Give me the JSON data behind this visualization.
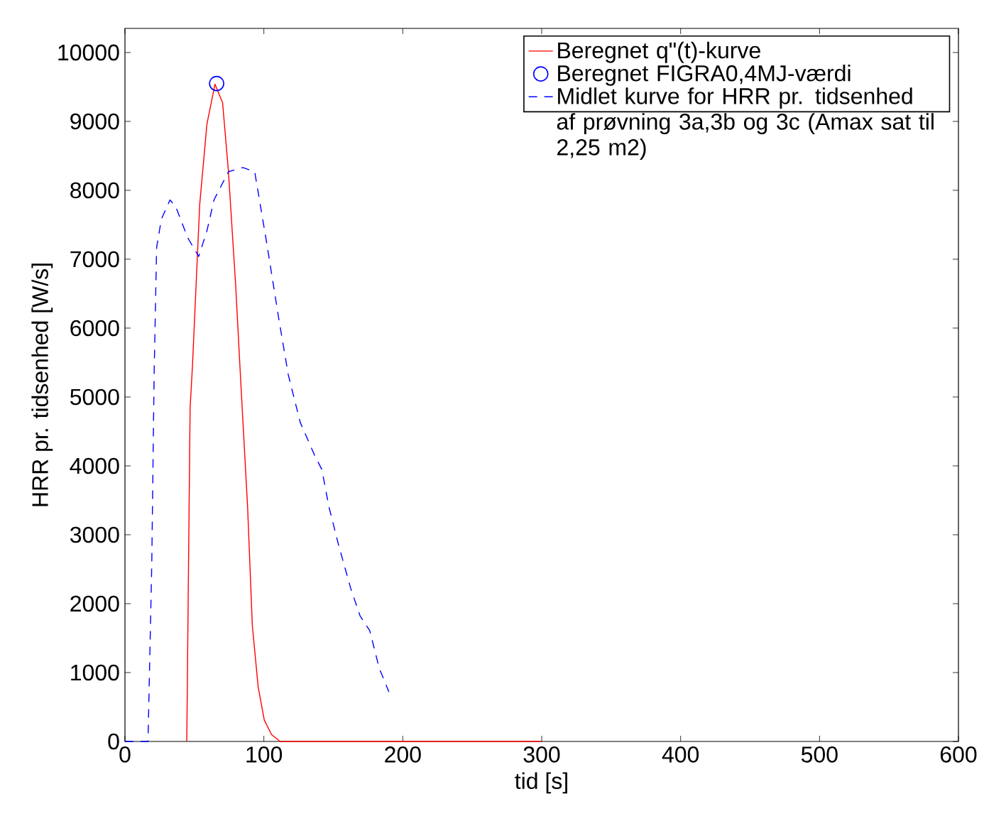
{
  "chart_data": {
    "type": "line",
    "xlabel": "tid [s]",
    "ylabel": "HRR pr. tidsenhed [W/s]",
    "xlim": [
      0,
      600
    ],
    "xticks": [
      0,
      100,
      200,
      300,
      400,
      500,
      600
    ],
    "ylim": [
      0,
      10350
    ],
    "yticks": [
      0,
      1000,
      2000,
      3000,
      4000,
      5000,
      6000,
      7000,
      8000,
      9000,
      10000
    ],
    "grid": false,
    "legend": "top right",
    "series": [
      {
        "name": "Beregnet q\"(t)-kurve",
        "color": "#ff0000",
        "line_style": "solid",
        "marker": "none",
        "x": [
          44.5,
          46.9,
          48.6,
          53.8,
          59,
          64.8,
          70.3,
          74.5,
          79.7,
          83.1,
          88.3,
          91.7,
          95.9,
          100.3,
          105.5,
          111.7,
          300
        ],
        "values": [
          0,
          4840,
          5450,
          7790,
          8960,
          9540,
          9270,
          8270,
          6620,
          5320,
          3400,
          1680,
          790,
          310,
          100,
          0,
          0
        ]
      },
      {
        "name": "Beregnet FIGRA0,4MJ-værdi",
        "type": "scatter",
        "color": "#0000ff",
        "marker": "circle",
        "x": [
          66
        ],
        "values": [
          9550
        ]
      },
      {
        "name": "Midlet kurve for HRR pr. tidsenhed af prøvning 3a,3b og 3c (Amax sat til 2,25 m2)",
        "color": "#0000ff",
        "line_style": "dashed",
        "marker": "none",
        "x": [
          0,
          16.6,
          19.3,
          21,
          22.8,
          26.2,
          32.4,
          36.6,
          45.2,
          53.1,
          59,
          64.1,
          74.5,
          84.8,
          93.4,
          102,
          110.7,
          117.6,
          126.2,
          136.6,
          141.7,
          146.9,
          153.8,
          162.4,
          169.3,
          176.2,
          183.1,
          190
        ],
        "values": [
          0,
          0,
          2570,
          5320,
          7170,
          7580,
          7860,
          7760,
          7310,
          7040,
          7410,
          7860,
          8270,
          8330,
          8270,
          7240,
          6140,
          5320,
          4630,
          4150,
          3950,
          3400,
          2850,
          2230,
          1820,
          1610,
          1060,
          720
        ]
      }
    ]
  }
}
